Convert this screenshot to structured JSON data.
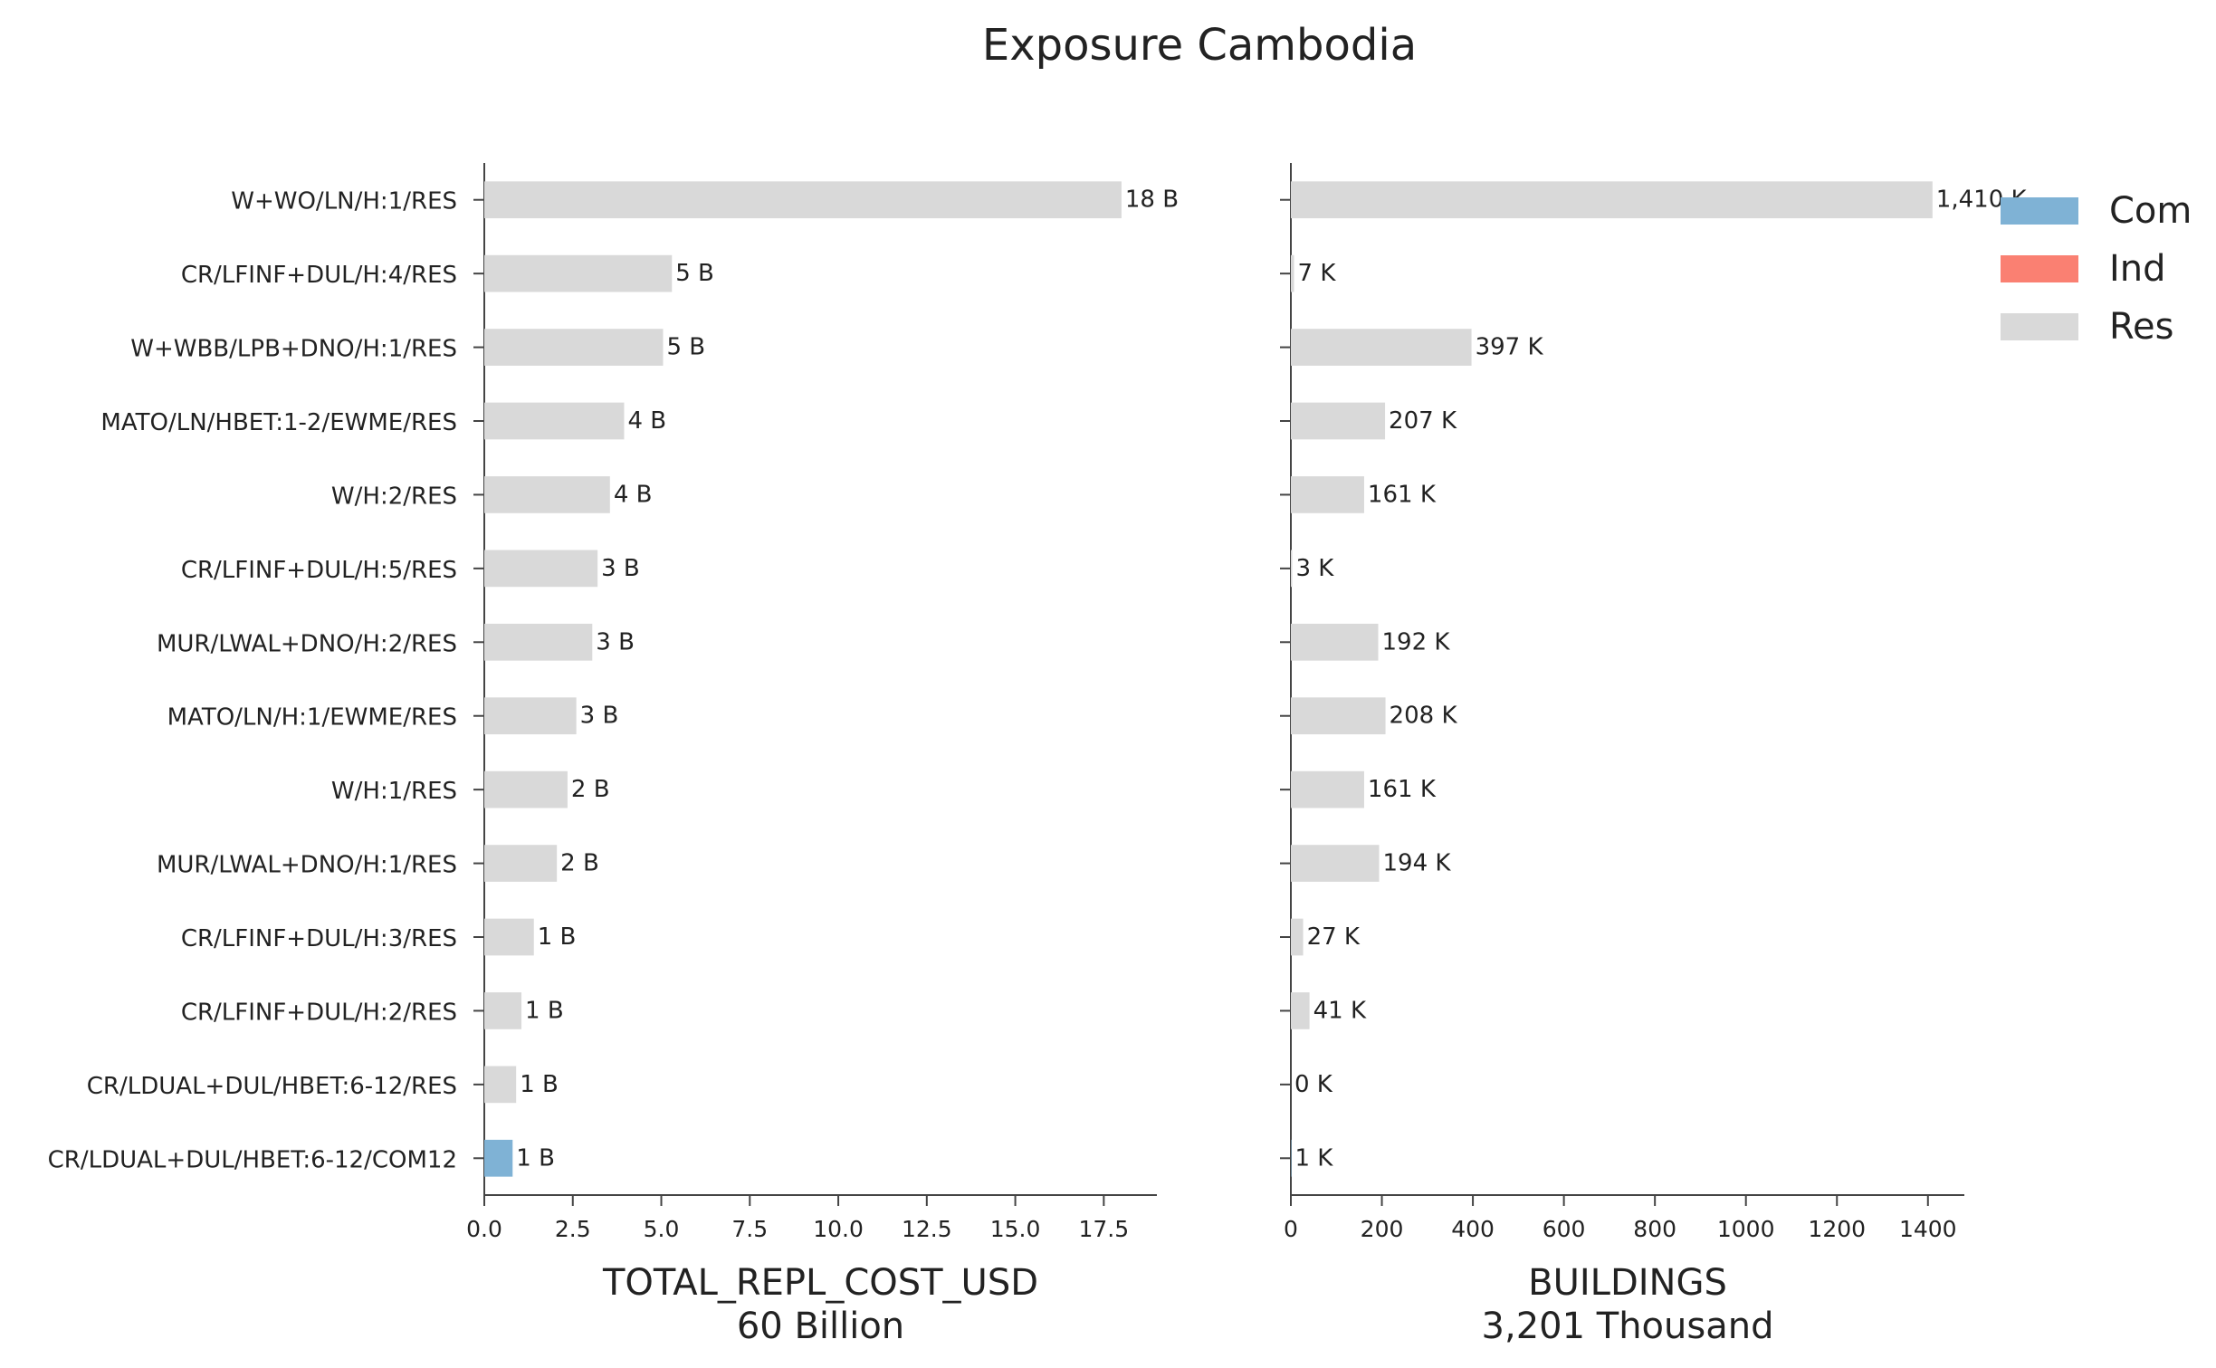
{
  "title": "Exposure Cambodia",
  "categories": [
    "W+WO/LN/H:1/RES",
    "CR/LFINF+DUL/H:4/RES",
    "W+WBB/LPB+DNO/H:1/RES",
    "MATO/LN/HBET:1-2/EWME/RES",
    "W/H:2/RES",
    "CR/LFINF+DUL/H:5/RES",
    "MUR/LWAL+DNO/H:2/RES",
    "MATO/LN/H:1/EWME/RES",
    "W/H:1/RES",
    "MUR/LWAL+DNO/H:1/RES",
    "CR/LFINF+DUL/H:3/RES",
    "CR/LFINF+DUL/H:2/RES",
    "CR/LDUAL+DUL/HBET:6-12/RES",
    "CR/LDUAL+DUL/HBET:6-12/COM12"
  ],
  "occupancy": [
    "Res",
    "Res",
    "Res",
    "Res",
    "Res",
    "Res",
    "Res",
    "Res",
    "Res",
    "Res",
    "Res",
    "Res",
    "Res",
    "Com"
  ],
  "legend": [
    {
      "label": "Com",
      "color": "#7fb2d5"
    },
    {
      "label": "Ind",
      "color": "#fa8072"
    },
    {
      "label": "Res",
      "color": "#d9d9d9"
    }
  ],
  "chart_data": [
    {
      "type": "bar",
      "orientation": "horizontal",
      "xlabel": "TOTAL_REPL_COST_USD",
      "xlabel_sub": "60 Billion",
      "xlim": [
        0,
        19
      ],
      "xticks": [
        "0.0",
        "2.5",
        "5.0",
        "7.5",
        "10.0",
        "12.5",
        "15.0",
        "17.5"
      ],
      "xtick_values": [
        0,
        2.5,
        5,
        7.5,
        10,
        12.5,
        15,
        17.5
      ],
      "values": [
        18.0,
        5.3,
        5.05,
        3.95,
        3.55,
        3.2,
        3.05,
        2.6,
        2.35,
        2.05,
        1.4,
        1.05,
        0.9,
        0.8
      ],
      "value_labels": [
        "18 B",
        "5 B",
        "5 B",
        "4 B",
        "4 B",
        "3 B",
        "3 B",
        "3 B",
        "2 B",
        "2 B",
        "1 B",
        "1 B",
        "1 B",
        "1 B"
      ]
    },
    {
      "type": "bar",
      "orientation": "horizontal",
      "xlabel": "BUILDINGS",
      "xlabel_sub": "3,201 Thousand",
      "xlim": [
        0,
        1480
      ],
      "xticks": [
        "0",
        "200",
        "400",
        "600",
        "800",
        "1000",
        "1200",
        "1400"
      ],
      "xtick_values": [
        0,
        200,
        400,
        600,
        800,
        1000,
        1200,
        1400
      ],
      "values": [
        1410,
        7,
        397,
        207,
        161,
        3,
        192,
        208,
        161,
        194,
        27,
        41,
        0,
        1
      ],
      "value_labels": [
        "1,410 K",
        "7 K",
        "397 K",
        "207 K",
        "161 K",
        "3 K",
        "192 K",
        "208 K",
        "161 K",
        "194 K",
        "27 K",
        "41 K",
        "0 K",
        "1 K"
      ]
    }
  ]
}
